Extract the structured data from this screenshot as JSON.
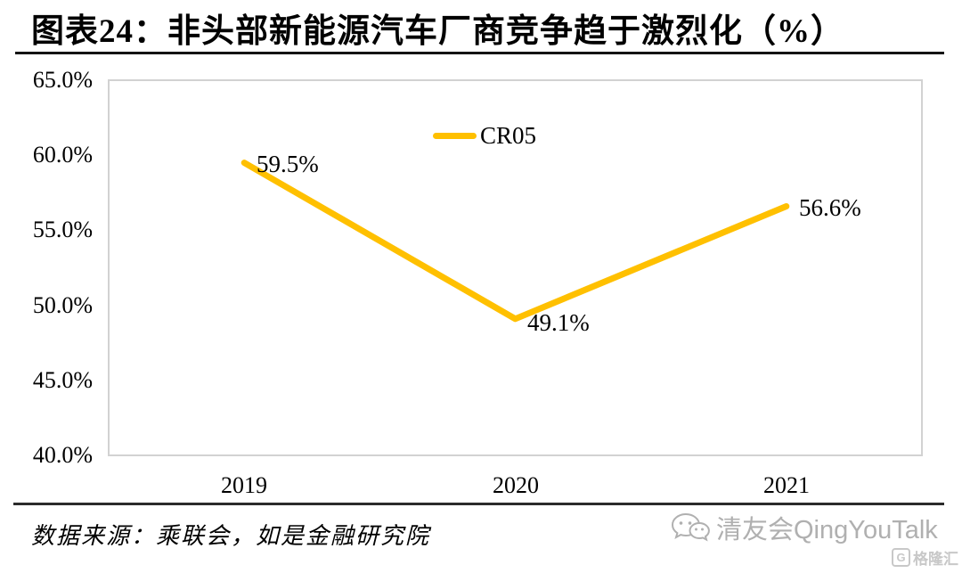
{
  "title": "图表24：非头部新能源汽车厂商竞争趋于激烈化（%）",
  "chart_data": {
    "type": "line",
    "categories": [
      "2019",
      "2020",
      "2021"
    ],
    "series": [
      {
        "name": "CR05",
        "values": [
          59.5,
          49.1,
          56.6
        ],
        "color": "#FFC000"
      }
    ],
    "point_labels": [
      "59.5%",
      "49.1%",
      "56.6%"
    ],
    "ylim": [
      40,
      65
    ],
    "ytick_labels": [
      "65.0%",
      "60.0%",
      "55.0%",
      "50.0%",
      "45.0%",
      "40.0%"
    ],
    "xlabel": "",
    "ylabel": "",
    "grid": false,
    "legend": {
      "label": "CR05",
      "position": "top-center"
    },
    "plot_border_color": "#D2D2D2"
  },
  "footer": {
    "source": "数据来源：乘联会，如是金融研究院",
    "watermark": "清友会QingYouTalk",
    "logo": "格隆汇",
    "logo_badge": "G"
  }
}
